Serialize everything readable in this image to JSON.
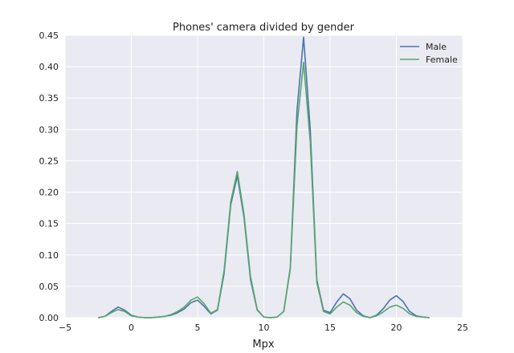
{
  "chart_data": {
    "type": "line",
    "title": "Phones' camera divided by gender",
    "xlabel": "Mpx",
    "ylabel": "",
    "xlim": [
      -5,
      25
    ],
    "ylim": [
      0,
      0.45
    ],
    "xticks": [
      -5,
      0,
      5,
      10,
      15,
      20,
      25
    ],
    "yticks": [
      0.0,
      0.05,
      0.1,
      0.15,
      0.2,
      0.25,
      0.3,
      0.35,
      0.4,
      0.45
    ],
    "xtick_labels": [
      "−5",
      "0",
      "5",
      "10",
      "15",
      "20",
      "25"
    ],
    "ytick_labels": [
      "0.00",
      "0.05",
      "0.10",
      "0.15",
      "0.20",
      "0.25",
      "0.30",
      "0.35",
      "0.40",
      "0.45"
    ],
    "grid": true,
    "legend_position": "top-right",
    "background_color": "#eaeaf2",
    "grid_color": "#ffffff",
    "x": [
      -2.5,
      -2.0,
      -1.5,
      -1.0,
      -0.5,
      0.0,
      0.5,
      1.0,
      1.5,
      2.0,
      2.5,
      3.0,
      3.5,
      4.0,
      4.5,
      5.0,
      5.5,
      6.0,
      6.5,
      7.0,
      7.5,
      8.0,
      8.5,
      9.0,
      9.5,
      10.0,
      10.5,
      11.0,
      11.5,
      12.0,
      12.5,
      13.0,
      13.5,
      14.0,
      14.5,
      15.0,
      15.5,
      16.0,
      16.5,
      17.0,
      17.5,
      18.0,
      18.5,
      19.0,
      19.5,
      20.0,
      20.5,
      21.0,
      21.5,
      22.0,
      22.5
    ],
    "series": [
      {
        "name": "Male",
        "color": "#4c72b0",
        "values": [
          0.0,
          0.002,
          0.01,
          0.017,
          0.012,
          0.004,
          0.001,
          0.0,
          0.0,
          0.001,
          0.002,
          0.004,
          0.008,
          0.014,
          0.024,
          0.028,
          0.018,
          0.006,
          0.012,
          0.07,
          0.18,
          0.226,
          0.16,
          0.06,
          0.012,
          0.001,
          0.0,
          0.001,
          0.01,
          0.08,
          0.33,
          0.447,
          0.3,
          0.06,
          0.012,
          0.008,
          0.025,
          0.038,
          0.03,
          0.012,
          0.003,
          0.0,
          0.004,
          0.014,
          0.028,
          0.035,
          0.026,
          0.01,
          0.003,
          0.001,
          0.0
        ]
      },
      {
        "name": "Female",
        "color": "#55a868",
        "values": [
          0.0,
          0.002,
          0.008,
          0.013,
          0.01,
          0.003,
          0.001,
          0.0,
          0.0,
          0.001,
          0.002,
          0.005,
          0.01,
          0.017,
          0.028,
          0.033,
          0.022,
          0.007,
          0.013,
          0.075,
          0.185,
          0.233,
          0.165,
          0.065,
          0.013,
          0.001,
          0.0,
          0.001,
          0.01,
          0.078,
          0.305,
          0.407,
          0.28,
          0.056,
          0.01,
          0.006,
          0.017,
          0.025,
          0.02,
          0.008,
          0.002,
          0.0,
          0.003,
          0.009,
          0.017,
          0.02,
          0.015,
          0.006,
          0.002,
          0.001,
          0.0
        ]
      }
    ]
  }
}
